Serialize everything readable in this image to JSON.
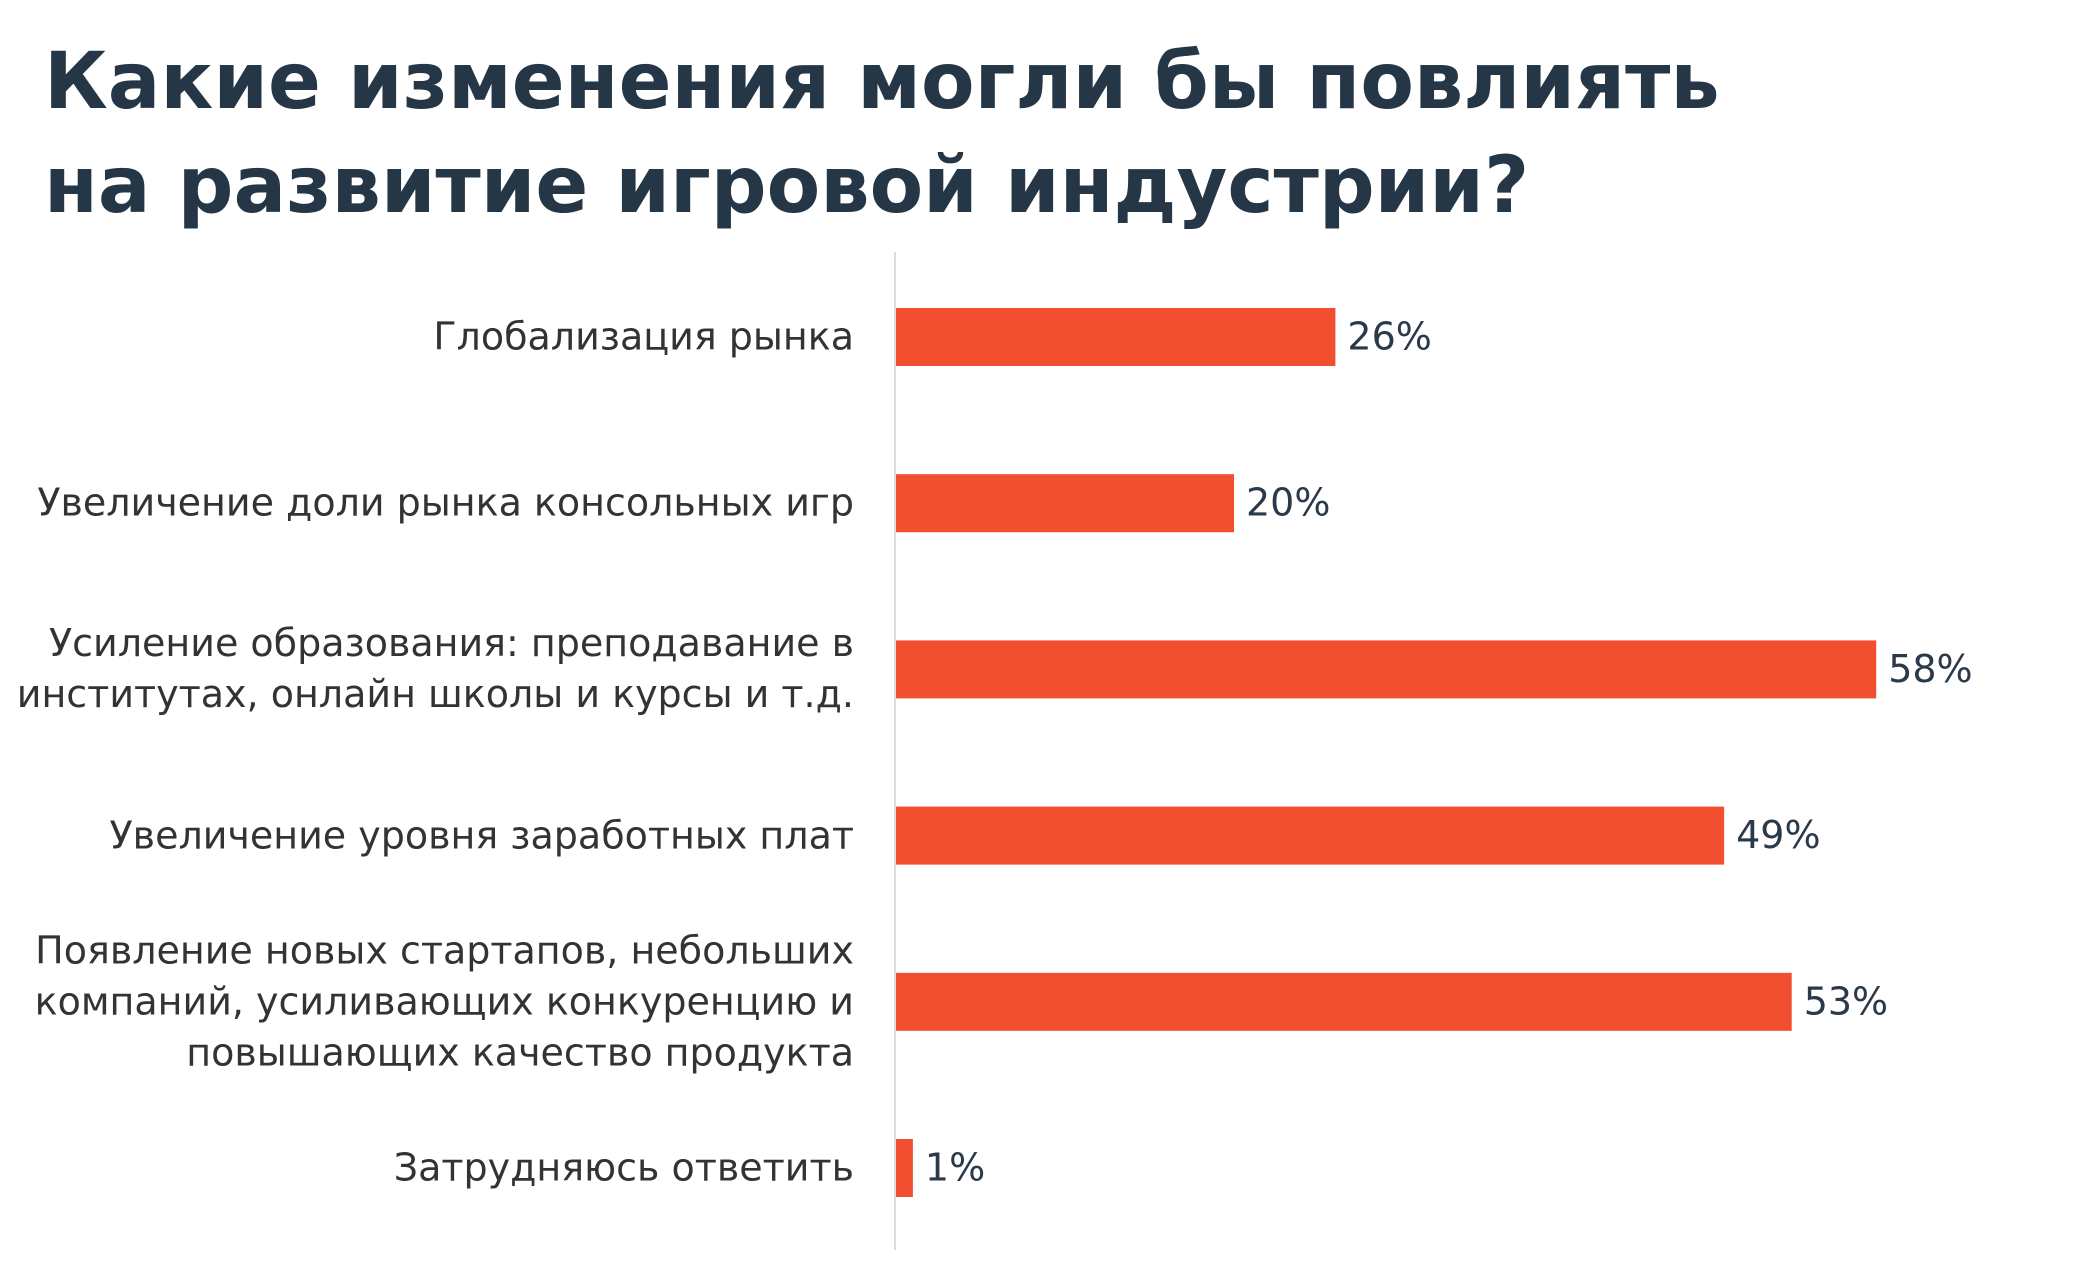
{
  "chart_data": {
    "type": "bar",
    "orientation": "horizontal",
    "title": "Какие изменения могли бы повлиять\nна развитие игровой индустрии?",
    "categories": [
      "Глобализация рынка",
      "Увеличение доли рынка консольных игр",
      "Усиление образования: преподавание в\nинститутах, онлайн школы и курсы и т.д.",
      "Увеличение уровня заработных плат",
      "Появление новых стартапов, небольших\nкомпаний, усиливающих конкуренцию и\nповышающих качество продукта",
      "Затрудняюсь ответить"
    ],
    "values": [
      26,
      20,
      58,
      49,
      53,
      1
    ],
    "value_labels": [
      "26%",
      "20%",
      "58%",
      "49%",
      "53%",
      "1%"
    ],
    "color": "#f24e30"
  }
}
